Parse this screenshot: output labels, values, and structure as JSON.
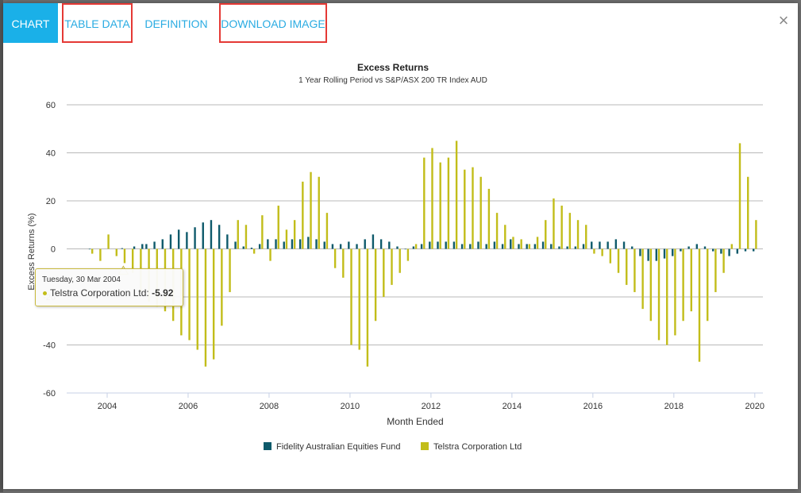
{
  "tabs": {
    "chart": "CHART",
    "table_data": "TABLE DATA",
    "definition": "DEFINITION",
    "download_image": "DOWNLOAD IMAGE"
  },
  "close_label": "×",
  "tooltip": {
    "date": "Tuesday, 30 Mar 2004",
    "series": "Telstra Corporation Ltd",
    "value": "-5.92"
  },
  "colors": {
    "accent": "#1ab0e8",
    "tab_text": "#29abe2",
    "highlight_box": "#e53935",
    "fund": "#0e5a6b",
    "telstra": "#c2bd1a"
  },
  "chart_data": {
    "type": "bar",
    "title": "Excess Returns",
    "subtitle": "1 Year Rolling Period vs S&P/ASX 200 TR Index AUD",
    "xlabel": "Month Ended",
    "ylabel": "Excess Returns (%)",
    "ylim": [
      -60,
      60
    ],
    "yticks": [
      -60,
      -40,
      -20,
      0,
      20,
      40,
      60
    ],
    "xlim": [
      2003.0,
      2020.2
    ],
    "xticks": [
      "2004",
      "2006",
      "2008",
      "2010",
      "2012",
      "2014",
      "2016",
      "2018",
      "2020"
    ],
    "grid": true,
    "legend_position": "bottom",
    "series": [
      {
        "name": "Fidelity Australian Equities Fund",
        "color": "#0e5a6b",
        "points": [
          [
            2003.6,
            0
          ],
          [
            2004.4,
            0.3
          ],
          [
            2004.7,
            1
          ],
          [
            2004.9,
            2
          ],
          [
            2005.0,
            2
          ],
          [
            2005.2,
            3
          ],
          [
            2005.4,
            4
          ],
          [
            2005.6,
            6
          ],
          [
            2005.8,
            8
          ],
          [
            2006.0,
            7
          ],
          [
            2006.2,
            9
          ],
          [
            2006.4,
            11
          ],
          [
            2006.6,
            12
          ],
          [
            2006.8,
            10
          ],
          [
            2007.0,
            6
          ],
          [
            2007.2,
            3
          ],
          [
            2007.4,
            1
          ],
          [
            2007.6,
            0.5
          ],
          [
            2007.8,
            2
          ],
          [
            2008.0,
            4
          ],
          [
            2008.2,
            4
          ],
          [
            2008.4,
            3
          ],
          [
            2008.6,
            4
          ],
          [
            2008.8,
            4
          ],
          [
            2009.0,
            5
          ],
          [
            2009.2,
            4
          ],
          [
            2009.4,
            3
          ],
          [
            2009.6,
            2
          ],
          [
            2009.8,
            2
          ],
          [
            2010.0,
            3
          ],
          [
            2010.2,
            2
          ],
          [
            2010.4,
            4
          ],
          [
            2010.6,
            6
          ],
          [
            2010.8,
            4
          ],
          [
            2011.0,
            3
          ],
          [
            2011.2,
            1
          ],
          [
            2011.4,
            0
          ],
          [
            2011.6,
            1
          ],
          [
            2011.8,
            2
          ],
          [
            2012.0,
            3
          ],
          [
            2012.2,
            3
          ],
          [
            2012.4,
            3
          ],
          [
            2012.6,
            3
          ],
          [
            2012.8,
            2
          ],
          [
            2013.0,
            2
          ],
          [
            2013.2,
            3
          ],
          [
            2013.4,
            2
          ],
          [
            2013.6,
            3
          ],
          [
            2013.8,
            2
          ],
          [
            2014.0,
            4
          ],
          [
            2014.2,
            2
          ],
          [
            2014.4,
            2
          ],
          [
            2014.6,
            2
          ],
          [
            2014.8,
            3
          ],
          [
            2015.0,
            2
          ],
          [
            2015.2,
            1
          ],
          [
            2015.4,
            1
          ],
          [
            2015.6,
            1
          ],
          [
            2015.8,
            2
          ],
          [
            2016.0,
            3
          ],
          [
            2016.2,
            3
          ],
          [
            2016.4,
            3
          ],
          [
            2016.6,
            4
          ],
          [
            2016.8,
            3
          ],
          [
            2017.0,
            1
          ],
          [
            2017.2,
            -3
          ],
          [
            2017.4,
            -5
          ],
          [
            2017.6,
            -5
          ],
          [
            2017.8,
            -4
          ],
          [
            2018.0,
            -3
          ],
          [
            2018.2,
            -1
          ],
          [
            2018.4,
            1
          ],
          [
            2018.6,
            2
          ],
          [
            2018.8,
            1
          ],
          [
            2019.0,
            -1
          ],
          [
            2019.2,
            -2
          ],
          [
            2019.4,
            -3
          ],
          [
            2019.6,
            -2
          ],
          [
            2019.8,
            -1
          ],
          [
            2020.0,
            -1
          ]
        ]
      },
      {
        "name": "Telstra Corporation Ltd",
        "color": "#c2bd1a",
        "points": [
          [
            2003.6,
            -2
          ],
          [
            2003.8,
            -5
          ],
          [
            2004.0,
            6
          ],
          [
            2004.2,
            -3
          ],
          [
            2004.4,
            -5.92
          ],
          [
            2004.6,
            -10
          ],
          [
            2004.8,
            -18
          ],
          [
            2005.0,
            -22
          ],
          [
            2005.2,
            -24
          ],
          [
            2005.4,
            -26
          ],
          [
            2005.6,
            -30
          ],
          [
            2005.8,
            -36
          ],
          [
            2006.0,
            -38
          ],
          [
            2006.2,
            -42
          ],
          [
            2006.4,
            -49
          ],
          [
            2006.6,
            -46
          ],
          [
            2006.8,
            -32
          ],
          [
            2007.0,
            -18
          ],
          [
            2007.2,
            12
          ],
          [
            2007.4,
            10
          ],
          [
            2007.6,
            -2
          ],
          [
            2007.8,
            14
          ],
          [
            2008.0,
            -5
          ],
          [
            2008.2,
            18
          ],
          [
            2008.4,
            8
          ],
          [
            2008.6,
            12
          ],
          [
            2008.8,
            28
          ],
          [
            2009.0,
            32
          ],
          [
            2009.2,
            30
          ],
          [
            2009.4,
            15
          ],
          [
            2009.6,
            -8
          ],
          [
            2009.8,
            -12
          ],
          [
            2010.0,
            -40
          ],
          [
            2010.2,
            -42
          ],
          [
            2010.4,
            -49
          ],
          [
            2010.6,
            -30
          ],
          [
            2010.8,
            -20
          ],
          [
            2011.0,
            -15
          ],
          [
            2011.2,
            -10
          ],
          [
            2011.4,
            -5
          ],
          [
            2011.6,
            2
          ],
          [
            2011.8,
            38
          ],
          [
            2012.0,
            42
          ],
          [
            2012.2,
            36
          ],
          [
            2012.4,
            38
          ],
          [
            2012.6,
            45
          ],
          [
            2012.8,
            33
          ],
          [
            2013.0,
            34
          ],
          [
            2013.2,
            30
          ],
          [
            2013.4,
            25
          ],
          [
            2013.6,
            15
          ],
          [
            2013.8,
            10
          ],
          [
            2014.0,
            5
          ],
          [
            2014.2,
            4
          ],
          [
            2014.4,
            2
          ],
          [
            2014.6,
            5
          ],
          [
            2014.8,
            12
          ],
          [
            2015.0,
            21
          ],
          [
            2015.2,
            18
          ],
          [
            2015.4,
            15
          ],
          [
            2015.6,
            12
          ],
          [
            2015.8,
            10
          ],
          [
            2016.0,
            -2
          ],
          [
            2016.2,
            -3
          ],
          [
            2016.4,
            -6
          ],
          [
            2016.6,
            -10
          ],
          [
            2016.8,
            -15
          ],
          [
            2017.0,
            -18
          ],
          [
            2017.2,
            -25
          ],
          [
            2017.4,
            -30
          ],
          [
            2017.6,
            -38
          ],
          [
            2017.8,
            -40
          ],
          [
            2018.0,
            -36
          ],
          [
            2018.2,
            -30
          ],
          [
            2018.4,
            -26
          ],
          [
            2018.6,
            -47
          ],
          [
            2018.8,
            -30
          ],
          [
            2019.0,
            -18
          ],
          [
            2019.2,
            -10
          ],
          [
            2019.4,
            2
          ],
          [
            2019.6,
            44
          ],
          [
            2019.8,
            30
          ],
          [
            2020.0,
            12
          ]
        ]
      }
    ]
  }
}
